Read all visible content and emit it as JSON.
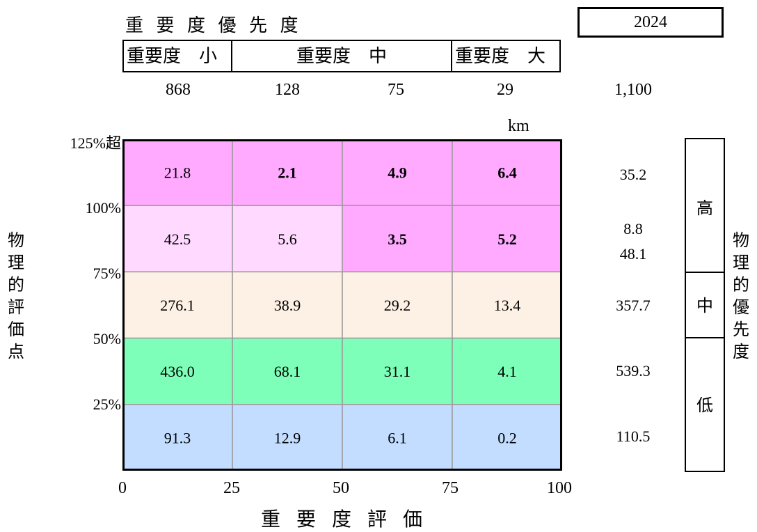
{
  "header": {
    "title": "重 要 度 優 先 度",
    "year": "2024",
    "importance_boxes": [
      "重要度　小",
      "重要度　中",
      "重要度　大"
    ],
    "counts": [
      "868",
      "128",
      "75",
      "29"
    ],
    "total_count": "1,100",
    "unit": "km"
  },
  "axes": {
    "xlabel": "重 要 度 評 価",
    "ylabel": "物理的評価点",
    "right_label": "物理的優先度",
    "xticks": [
      "0",
      "25",
      "50",
      "75",
      "100"
    ],
    "yticks": [
      "125%超",
      "100%",
      "75%",
      "50%",
      "25%"
    ]
  },
  "priority_labels": [
    "高",
    "中",
    "低"
  ],
  "row_totals": [
    "35.2",
    "8.8",
    "48.1",
    "357.7",
    "539.3",
    "110.5"
  ],
  "chart_data": {
    "type": "heatmap",
    "x_bins": [
      "0-25",
      "25-50",
      "50-75",
      "75-100"
    ],
    "y_bins": [
      "125%超",
      "100%",
      "75%",
      "50%",
      "25%"
    ],
    "values": [
      [
        21.8,
        2.1,
        4.9,
        6.4
      ],
      [
        42.5,
        5.6,
        3.5,
        5.2
      ],
      [
        276.1,
        38.9,
        29.2,
        13.4
      ],
      [
        436.0,
        68.1,
        31.1,
        4.1
      ],
      [
        91.3,
        12.9,
        6.1,
        0.2
      ]
    ],
    "labels": [
      [
        "21.8",
        "2.1",
        "4.9",
        "6.4"
      ],
      [
        "42.5",
        "5.6",
        "3.5",
        "5.2"
      ],
      [
        "276.1",
        "38.9",
        "29.2",
        "13.4"
      ],
      [
        "436.0",
        "68.1",
        "31.1",
        "4.1"
      ],
      [
        "91.3",
        "12.9",
        "6.1",
        "0.2"
      ]
    ],
    "bold": [
      [
        false,
        true,
        true,
        true
      ],
      [
        false,
        false,
        true,
        true
      ],
      [
        false,
        false,
        false,
        false
      ],
      [
        false,
        false,
        false,
        false
      ],
      [
        false,
        false,
        false,
        false
      ]
    ],
    "colors": [
      [
        "#ffaaff",
        "#ffaaff",
        "#ffaaff",
        "#ffaaff"
      ],
      [
        "#ffd9ff",
        "#ffd9ff",
        "#ffaaff",
        "#ffaaff"
      ],
      [
        "#fdf0e4",
        "#fdf0e4",
        "#fdf0e4",
        "#fdf0e4"
      ],
      [
        "#7dffb9",
        "#7dffb9",
        "#7dffb9",
        "#7dffb9"
      ],
      [
        "#c2ddff",
        "#c2ddff",
        "#c2ddff",
        "#c2ddff"
      ]
    ],
    "xlim": [
      0,
      100
    ]
  }
}
